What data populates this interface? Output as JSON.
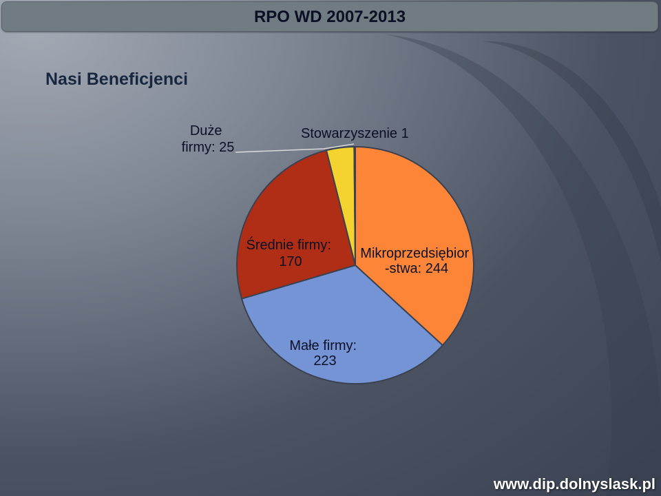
{
  "header": {
    "title": "RPO WD 2007-2013"
  },
  "page": {
    "subtitle": "Nasi Beneficjenci"
  },
  "footer": {
    "url": "www.dip.dolnyslask.pl"
  },
  "colors": {
    "Mikroprzedsiębiorstwa": "#fd8537",
    "Małe": "#7594d6",
    "Średnie": "#b02d16",
    "Duże": "#f4d331",
    "Stowarzyszenie": "#4f6aa6"
  },
  "chart_data": {
    "type": "pie",
    "title": "",
    "slices": [
      {
        "key": "Mikroprzedsiębiorstwa",
        "value": 244,
        "label_lines": [
          "Mikroprzedsiębior",
          "-stwa: 244"
        ]
      },
      {
        "key": "Małe",
        "value": 223,
        "label_lines": [
          "Małe firmy:",
          "223"
        ]
      },
      {
        "key": "Średnie",
        "value": 170,
        "label_lines": [
          "Średnie firmy:",
          "170"
        ]
      },
      {
        "key": "Duże",
        "value": 25,
        "label_lines": [
          "Duże",
          "firmy: 25"
        ]
      },
      {
        "key": "Stowarzyszenie",
        "value": 1,
        "label_lines": [
          "Stowarzyszenie 1"
        ]
      }
    ]
  }
}
